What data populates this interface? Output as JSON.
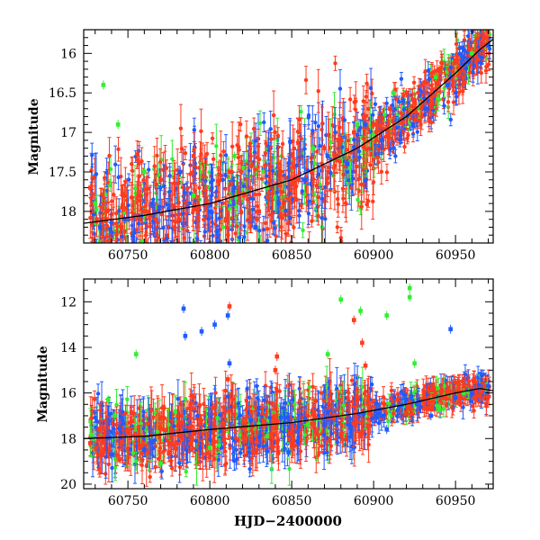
{
  "chart_data": [
    {
      "type": "scatter",
      "panel": "top",
      "title": "",
      "xlabel": "",
      "ylabel": "Magnitude",
      "xlim": [
        60723,
        60973
      ],
      "ylim": [
        18.4,
        15.7
      ],
      "y_inverted": true,
      "xticks": [
        60750,
        60800,
        60850,
        60900,
        60950
      ],
      "xtick_labels": [
        "60750",
        "60800",
        "60850",
        "60900",
        "60950"
      ],
      "yticks": [
        16,
        16.5,
        17,
        17.5,
        18
      ],
      "ytick_labels": [
        "16",
        "16.5",
        "17",
        "17.5",
        "18"
      ],
      "series": [
        {
          "name": "red",
          "color": "#ff3b1f",
          "x": [
            60727,
            60731,
            60737,
            60746,
            60760,
            60770,
            60781,
            60790,
            60798,
            60812,
            60821,
            60830,
            60836,
            60845,
            60854,
            60862,
            60870,
            60880,
            60888,
            60894,
            60900,
            60910,
            60920,
            60930,
            60940,
            60950,
            60960,
            60968
          ],
          "y": [
            17.7,
            18.1,
            18.0,
            18.2,
            18.0,
            17.6,
            18.1,
            17.3,
            17.9,
            17.5,
            17.8,
            18.0,
            17.7,
            17.9,
            17.6,
            17.5,
            17.2,
            17.1,
            17.0,
            16.8,
            16.9,
            16.7,
            16.5,
            16.4,
            16.2,
            16.1,
            15.95,
            15.8
          ]
        },
        {
          "name": "blue",
          "color": "#1f5bff",
          "x": [
            60733,
            60748,
            60765,
            60782,
            60800,
            60815,
            60828,
            60842,
            60858,
            60872,
            60884,
            60895,
            60905,
            60918,
            60932,
            60945,
            60958,
            60970
          ],
          "y": [
            18.2,
            18.1,
            17.9,
            17.5,
            18.0,
            17.7,
            18.2,
            17.9,
            17.6,
            17.3,
            17.4,
            16.9,
            17.1,
            16.6,
            16.7,
            16.4,
            16.1,
            15.9
          ]
        },
        {
          "name": "green",
          "color": "#33ee33",
          "x": [
            60730,
            60735,
            60744,
            60760,
            60790,
            60815,
            60835,
            60863,
            60890,
            60912,
            60938,
            60960
          ],
          "y": [
            17.9,
            16.4,
            16.9,
            17.5,
            17.8,
            17.3,
            17.7,
            17.2,
            16.9,
            16.5,
            16.3,
            16.0
          ]
        }
      ],
      "model_line": {
        "name": "model",
        "color": "#000000",
        "x": [
          60723,
          60760,
          60800,
          60850,
          60890,
          60920,
          60950,
          60965,
          60973
        ],
        "y": [
          18.15,
          18.05,
          17.9,
          17.6,
          17.2,
          16.8,
          16.25,
          15.95,
          15.82
        ]
      }
    },
    {
      "type": "scatter",
      "panel": "bottom",
      "title": "",
      "xlabel": "HJD−2400000",
      "ylabel": "Magnitude",
      "xlim": [
        60723,
        60973
      ],
      "ylim": [
        20.2,
        11.0
      ],
      "y_inverted": true,
      "xticks": [
        60750,
        60800,
        60850,
        60900,
        60950
      ],
      "xtick_labels": [
        "60750",
        "60800",
        "60850",
        "60900",
        "60950"
      ],
      "yticks": [
        12,
        14,
        16,
        18,
        20
      ],
      "ytick_labels": [
        "12",
        "14",
        "16",
        "18",
        "20"
      ],
      "series": [
        {
          "name": "red",
          "color": "#ff3b1f",
          "x": [
            60727,
            60735,
            60745,
            60760,
            60775,
            60790,
            60800,
            60811,
            60812,
            60825,
            60840,
            60841,
            60850,
            60865,
            60880,
            60888,
            60893,
            60895,
            60905,
            60920,
            60935,
            60950,
            60960,
            60968
          ],
          "y": [
            18.2,
            18.6,
            18.9,
            18.3,
            18.6,
            17.8,
            18.6,
            15.4,
            12.2,
            18.0,
            15.0,
            14.4,
            18.3,
            17.7,
            17.8,
            12.8,
            13.8,
            14.8,
            17.1,
            16.9,
            16.6,
            16.2,
            15.9,
            15.7
          ]
        },
        {
          "name": "blue",
          "color": "#1f5bff",
          "x": [
            60740,
            60760,
            60784,
            60785,
            60795,
            60803,
            60811,
            60812,
            60825,
            60848,
            60870,
            60894,
            60905,
            60908,
            60920,
            60935,
            60947,
            60950,
            60960,
            60970
          ],
          "y": [
            18.7,
            18.5,
            12.3,
            13.5,
            13.3,
            13.0,
            12.6,
            14.7,
            17.2,
            18.6,
            17.4,
            16.9,
            17.0,
            17.6,
            16.3,
            17.0,
            13.2,
            16.2,
            16.0,
            15.7
          ]
        },
        {
          "name": "green",
          "color": "#33ee33",
          "x": [
            60738,
            60742,
            60755,
            60770,
            60800,
            60835,
            60860,
            60872,
            60880,
            60892,
            60908,
            60922,
            60922,
            60925,
            60940,
            60955
          ],
          "y": [
            16.3,
            17.0,
            14.3,
            19.1,
            18.4,
            17.9,
            17.4,
            14.3,
            11.9,
            12.4,
            12.6,
            11.4,
            11.8,
            14.7,
            16.6,
            16.0
          ]
        }
      ],
      "model_line": {
        "name": "model",
        "color": "#000000",
        "x": [
          60723,
          60760,
          60800,
          60850,
          60890,
          60920,
          60950,
          60965,
          60973
        ],
        "y": [
          18.0,
          17.9,
          17.6,
          17.3,
          16.9,
          16.5,
          16.0,
          15.8,
          15.9
        ]
      }
    }
  ]
}
